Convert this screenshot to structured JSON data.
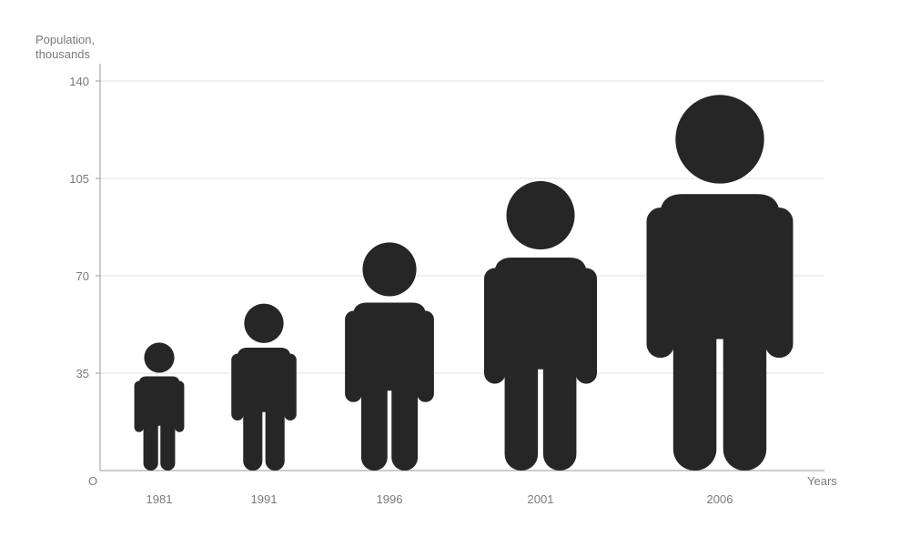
{
  "chart_data": {
    "type": "pictograph",
    "ylabel_line1": "Population,",
    "ylabel_line2": "thousands",
    "xlabel": "Years",
    "origin_label": "O",
    "ylim": [
      0,
      140
    ],
    "yticks": [
      140,
      105,
      70,
      35
    ],
    "categories": [
      "1981",
      "1991",
      "1996",
      "2001",
      "2006"
    ],
    "values": [
      46,
      60,
      82,
      104,
      135
    ],
    "grid": true,
    "colors": {
      "figure": "#262626",
      "grid": "#e2e2e2",
      "axis": "#9a9a9a",
      "text": "#7a7a7a"
    }
  }
}
